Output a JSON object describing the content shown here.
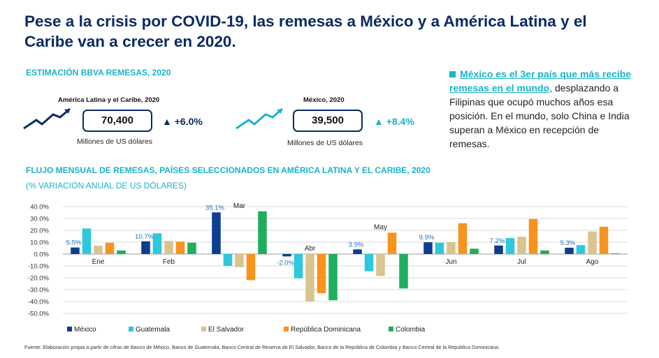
{
  "title": "Pese a la crisis por COVID-19, las remesas a México y a América Latina y el Caribe van a crecer en 2020.",
  "estimation": {
    "heading": "ESTIMACIÓN BBVA REMESAS, 2020",
    "latam": {
      "label": "América Latina y el Caribe, 2020",
      "value": "70,400",
      "delta": "+6.0%",
      "units": "Millones de US dólares",
      "color": "#0b2a63"
    },
    "mexico": {
      "label": "México, 2020",
      "value": "39,500",
      "delta": "+8.4%",
      "units": "Millones de US dólares",
      "color": "#1ab3c7"
    }
  },
  "side_note": {
    "highlight": "México es el 3er país que más recibe remesas en el mundo",
    "comma": ",",
    "rest": "desplazando a Filipinas que ocupó muchos años esa posición. En el mundo, solo China e India superan a México en recepción de remesas."
  },
  "chart_heading": "FLUJO MENSUAL DE REMESAS, PAÍSES SELECCIONADOS EN AMÉRICA LATINA Y EL CARIBE, 2020",
  "chart_subheading": "(% VARIACIÓN ANUAL DE US DÓLARES)",
  "chart_data": {
    "type": "bar",
    "title": "FLUJO MENSUAL DE REMESAS, PAÍSES SELECCIONADOS EN AMÉRICA LATINA Y EL CARIBE, 2020",
    "ylabel": "(% VARIACIÓN ANUAL DE US DÓLARES)",
    "ylim": [
      -50,
      40
    ],
    "yticks": [
      40,
      30,
      20,
      10,
      0,
      -10,
      -20,
      -30,
      -40,
      -50
    ],
    "ytick_labels": [
      "40.0%",
      "30.0%",
      "20.0%",
      "10.0%",
      "0.0%",
      "-10.0%",
      "-20.0%",
      "-30.0%",
      "-40.0%",
      "-50.0%"
    ],
    "categories": [
      "Ene",
      "Feb",
      "Mar",
      "Abr",
      "May",
      "Jun",
      "Jul",
      "Ago"
    ],
    "grid": true,
    "legend": "bottom",
    "series": [
      {
        "name": "México",
        "color": "#0b3d91",
        "values": [
          5.5,
          10.7,
          35.1,
          -2.0,
          3.9,
          9.9,
          7.2,
          5.3
        ]
      },
      {
        "name": "Guatemala",
        "color": "#2dc8dc",
        "values": [
          21.5,
          17.5,
          -10.0,
          -20.5,
          -14.5,
          9.5,
          13.5,
          7.5
        ]
      },
      {
        "name": "El Salvador",
        "color": "#d9c38f",
        "values": [
          7.0,
          11.0,
          -11.0,
          -40.0,
          -18.5,
          10.0,
          14.5,
          19.0
        ]
      },
      {
        "name": "República Dominicana",
        "color": "#f7941d",
        "values": [
          9.5,
          10.5,
          -22.0,
          -33.0,
          18.0,
          26.0,
          29.5,
          23.0
        ]
      },
      {
        "name": "Colombia",
        "color": "#1fae5e",
        "values": [
          3.0,
          9.5,
          36.0,
          -39.0,
          -29.0,
          4.5,
          3.0,
          0.5
        ]
      }
    ],
    "data_labels": [
      "5.5%",
      "10.7%",
      "35.1%",
      "-2.0%",
      "3.9%",
      "9.9%",
      "7.2%",
      "5.3%"
    ]
  },
  "source": "Fuente: Elaboración propia a partir de cifras de Banco de México, Banco de Guatemala, Banco Central de Reserva de El Salvador, Banco de la República de Colombia y Banco Central de la República Dominicana."
}
